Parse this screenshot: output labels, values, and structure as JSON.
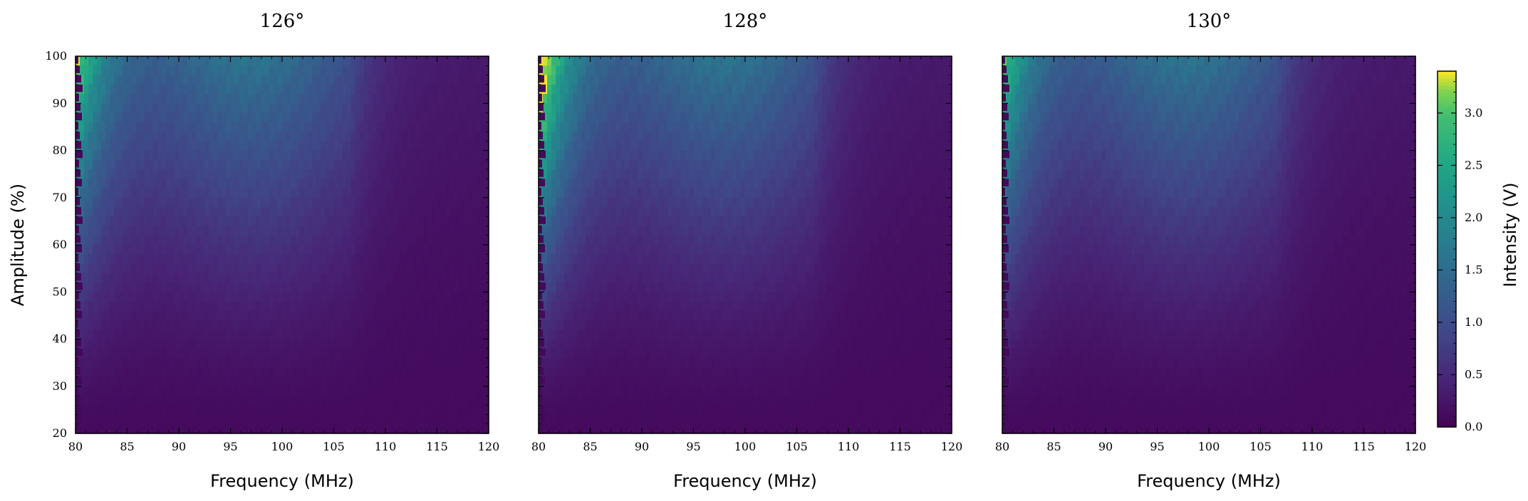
{
  "chart_data": {
    "type": "heatmap",
    "colormap": "viridis",
    "x_range": [
      80,
      120
    ],
    "y_range": [
      20,
      100
    ],
    "xticks": [
      80,
      85,
      90,
      95,
      100,
      105,
      110,
      115,
      120
    ],
    "yticks": [
      20,
      30,
      40,
      50,
      60,
      70,
      80,
      90,
      100
    ],
    "xlabel": "Frequency (MHz)",
    "ylabel": "Amplitude (%)",
    "colorbar": {
      "label": "Intensity (V)",
      "range": [
        0.0,
        3.4
      ],
      "ticks": [
        "0.0",
        "0.5",
        "1.0",
        "1.5",
        "2.0",
        "2.5",
        "3.0"
      ]
    },
    "panels": [
      {
        "title": "126°",
        "peak_intensity": 2.7,
        "secondary_band_center_mhz": 97,
        "intensity_at_100pct": [
          {
            "x": 81,
            "value": 2.5
          },
          {
            "x": 83,
            "value": 2.1
          },
          {
            "x": 86,
            "value": 1.4
          },
          {
            "x": 90,
            "value": 1.2
          },
          {
            "x": 95,
            "value": 1.4
          },
          {
            "x": 100,
            "value": 1.3
          },
          {
            "x": 105,
            "value": 1.0
          },
          {
            "x": 110,
            "value": 0.4
          },
          {
            "x": 120,
            "value": 0.35
          }
        ]
      },
      {
        "title": "128°",
        "peak_intensity": 3.4,
        "secondary_band_center_mhz": 98,
        "intensity_at_100pct": [
          {
            "x": 81,
            "value": 3.2
          },
          {
            "x": 83,
            "value": 2.7
          },
          {
            "x": 86,
            "value": 1.6
          },
          {
            "x": 90,
            "value": 1.3
          },
          {
            "x": 95,
            "value": 1.6
          },
          {
            "x": 100,
            "value": 1.5
          },
          {
            "x": 105,
            "value": 1.1
          },
          {
            "x": 110,
            "value": 0.45
          },
          {
            "x": 120,
            "value": 0.35
          }
        ]
      },
      {
        "title": "130°",
        "peak_intensity": 2.5,
        "secondary_band_center_mhz": 98,
        "intensity_at_100pct": [
          {
            "x": 81,
            "value": 2.3
          },
          {
            "x": 83,
            "value": 1.9
          },
          {
            "x": 86,
            "value": 1.3
          },
          {
            "x": 90,
            "value": 1.1
          },
          {
            "x": 95,
            "value": 1.3
          },
          {
            "x": 100,
            "value": 1.3
          },
          {
            "x": 105,
            "value": 1.0
          },
          {
            "x": 110,
            "value": 0.4
          },
          {
            "x": 120,
            "value": 0.35
          }
        ]
      }
    ]
  }
}
